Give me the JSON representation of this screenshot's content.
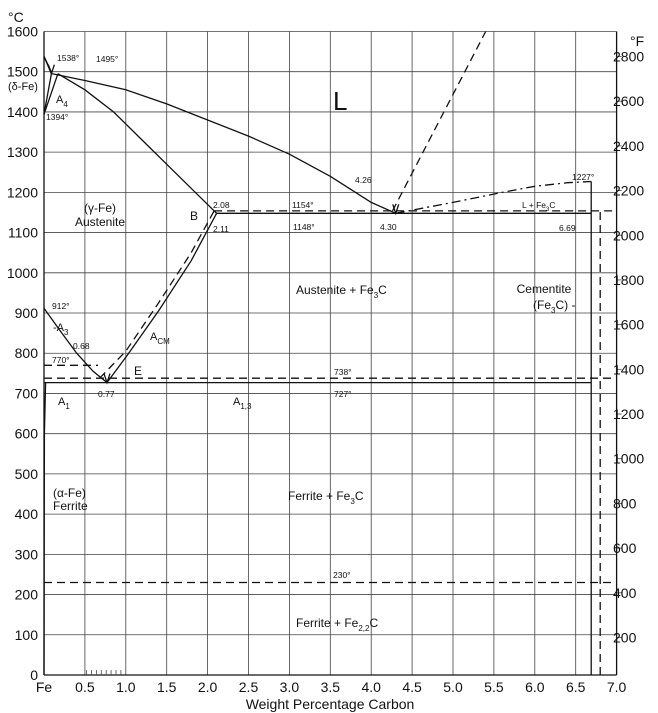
{
  "axes": {
    "left_unit": "°C",
    "right_unit": "°F",
    "xlabel": "Weight Percentage Carbon",
    "x_ticks": [
      "Fe",
      "0.5",
      "1.0",
      "1.5",
      "2.0",
      "2.5",
      "3.0",
      "3.5",
      "4.0",
      "4.5",
      "5.0",
      "5.5",
      "6.0",
      "6.5",
      "7.0"
    ],
    "y_ticks_c": [
      "0",
      "100",
      "200",
      "300",
      "400",
      "500",
      "600",
      "700",
      "800",
      "900",
      "1000",
      "1100",
      "1200",
      "1300",
      "1400",
      "1500",
      "1600"
    ],
    "y_ticks_f": [
      "200",
      "400",
      "600",
      "800",
      "1000",
      "1200",
      "1400",
      "1600",
      "1800",
      "2000",
      "2200",
      "2400",
      "2600",
      "2800"
    ]
  },
  "regions": {
    "liquid": "L",
    "delta_fe": "(δ-Fe)",
    "a4": "A",
    "a4_sub": "4",
    "gamma_fe": "(γ-Fe)",
    "austenite": "Austenite",
    "austenite_fe3c": "Austenite + Fe",
    "austenite_fe3c_sub": "3",
    "austenite_fe3c_end": "C",
    "l_fe3c": "L + Fe",
    "l_fe3c_sub": "3",
    "l_fe3c_end": "C",
    "cementite": "Cementite",
    "cementite_formula": "(Fe",
    "cementite_formula_sub": "3",
    "cementite_formula_end": "C) -",
    "a3": "A",
    "a3_sub": "3",
    "acm": "A",
    "acm_sub": "CM",
    "a1": "A",
    "a1_sub": "1",
    "a13": "A",
    "a13_sub": "1,3",
    "alpha_fe": "(α-Fe)",
    "ferrite": "Ferrite",
    "ferrite_fe3c": "Ferrite + Fe",
    "ferrite_fe3c_sub": "3",
    "ferrite_fe3c_end": "C",
    "ferrite_fe22c": "Ferrite + Fe",
    "ferrite_fe22c_sub": "2,2",
    "ferrite_fe22c_end": "C"
  },
  "annotations": {
    "t1538": "1538°",
    "t1495": "1495°",
    "t1394": "1394°",
    "pt_b": "B",
    "c208": "2.08",
    "c211": "2.11",
    "t1154": "1154°",
    "t1148": "1148°",
    "c426": "4.26",
    "c430": "4.30",
    "t1227": "1227°",
    "c669": "6.69",
    "t912": "912°",
    "c068": "0.68",
    "t770": "770°",
    "pt_e": "E",
    "t738": "738°",
    "t727": "727°",
    "c077": "0.77",
    "t230": "230°"
  },
  "chart_data": {
    "type": "phase-diagram",
    "x_range": [
      0,
      7.0
    ],
    "y_range": [
      0,
      1600
    ],
    "curves": [
      {
        "name": "liquidus_delta",
        "style": "solid",
        "points": [
          [
            0,
            1538
          ],
          [
            0.1,
            1495
          ]
        ]
      },
      {
        "name": "liquidus_gamma",
        "style": "solid",
        "points": [
          [
            0.1,
            1495
          ],
          [
            0.5,
            1478
          ],
          [
            1.0,
            1455
          ],
          [
            1.5,
            1420
          ],
          [
            2.0,
            1380
          ],
          [
            2.5,
            1340
          ],
          [
            3.0,
            1295
          ],
          [
            3.5,
            1240
          ],
          [
            4.0,
            1175
          ],
          [
            4.3,
            1148
          ]
        ]
      },
      {
        "name": "solidus_delta",
        "style": "solid",
        "points": [
          [
            0,
            1538
          ],
          [
            0.09,
            1495
          ]
        ]
      },
      {
        "name": "delta_gamma_low",
        "style": "solid",
        "points": [
          [
            0,
            1394
          ],
          [
            0.09,
            1495
          ]
        ]
      },
      {
        "name": "delta_gamma_high",
        "style": "solid",
        "points": [
          [
            0,
            1394
          ],
          [
            0.17,
            1495
          ]
        ]
      },
      {
        "name": "solidus_gamma",
        "style": "solid",
        "points": [
          [
            0.17,
            1495
          ],
          [
            0.5,
            1455
          ],
          [
            0.85,
            1400
          ],
          [
            1.2,
            1330
          ],
          [
            1.6,
            1250
          ],
          [
            2.11,
            1148
          ]
        ]
      },
      {
        "name": "liquidus_fe3c_metastable",
        "style": "dash",
        "points": [
          [
            4.26,
            1154
          ],
          [
            5.4,
            1600
          ]
        ]
      },
      {
        "name": "liquidus_fe3c_stable",
        "style": "dashdot",
        "points": [
          [
            4.3,
            1148
          ],
          [
            5.0,
            1175
          ],
          [
            5.6,
            1200
          ],
          [
            6.0,
            1215
          ],
          [
            6.4,
            1224
          ],
          [
            6.69,
            1227
          ]
        ]
      },
      {
        "name": "eutectic_stable",
        "style": "dash",
        "points": [
          [
            2.08,
            1154
          ],
          [
            7.0,
            1154
          ]
        ]
      },
      {
        "name": "eutectic_metastable",
        "style": "solid",
        "points": [
          [
            2.11,
            1148
          ],
          [
            6.69,
            1148
          ]
        ]
      },
      {
        "name": "acm_metastable",
        "style": "solid",
        "points": [
          [
            0.77,
            727
          ],
          [
            1.0,
            790
          ],
          [
            1.4,
            905
          ],
          [
            1.8,
            1030
          ],
          [
            2.11,
            1148
          ]
        ]
      },
      {
        "name": "acm_stable",
        "style": "dash",
        "points": [
          [
            0.68,
            738
          ],
          [
            1.0,
            805
          ],
          [
            1.4,
            925
          ],
          [
            1.8,
            1050
          ],
          [
            2.08,
            1154
          ]
        ]
      },
      {
        "name": "a3",
        "style": "solid",
        "points": [
          [
            0,
            912
          ],
          [
            0.2,
            855
          ],
          [
            0.4,
            800
          ],
          [
            0.6,
            755
          ],
          [
            0.77,
            727
          ]
        ]
      },
      {
        "name": "eutectoid_stable",
        "style": "dash",
        "points": [
          [
            0,
            738
          ],
          [
            7.0,
            738
          ]
        ]
      },
      {
        "name": "eutectoid_metastable",
        "style": "solid",
        "points": [
          [
            0,
            727
          ],
          [
            6.69,
            727
          ]
        ]
      },
      {
        "name": "curie_770",
        "style": "dash",
        "points": [
          [
            0,
            770
          ],
          [
            0.66,
            770
          ]
        ]
      },
      {
        "name": "ferrite_solvus",
        "style": "solid",
        "points": [
          [
            0,
            0
          ],
          [
            0.005,
            600
          ],
          [
            0.02,
            727
          ]
        ]
      },
      {
        "name": "line_230",
        "style": "dash",
        "points": [
          [
            0,
            230
          ],
          [
            7.0,
            230
          ]
        ]
      },
      {
        "name": "cementite_line",
        "style": "solid",
        "points": [
          [
            6.69,
            0
          ],
          [
            6.69,
            1227
          ]
        ]
      },
      {
        "name": "cementite_line_dashed",
        "style": "dash",
        "points": [
          [
            6.8,
            0
          ],
          [
            6.8,
            1154
          ]
        ]
      }
    ]
  }
}
